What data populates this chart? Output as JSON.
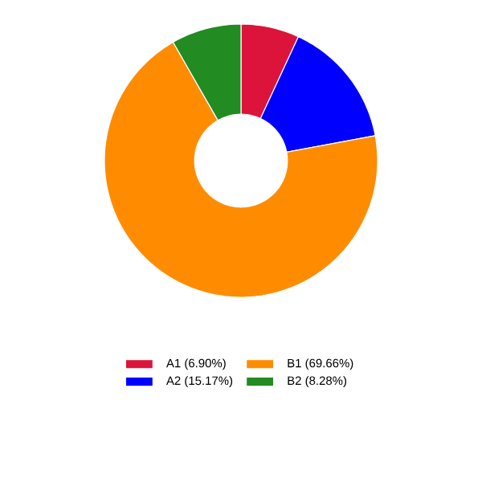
{
  "chart_data": {
    "type": "donut",
    "categories": [
      "A1 (6.90%)",
      "A2 (15.17%)",
      "B1 (69.66%)",
      "B2 (8.28%)"
    ],
    "values": [
      6.9,
      15.17,
      69.66,
      8.28
    ],
    "colors": [
      "#dc143c",
      "#0000ff",
      "#ff8c00",
      "#228b22"
    ],
    "legend": "bottom"
  }
}
